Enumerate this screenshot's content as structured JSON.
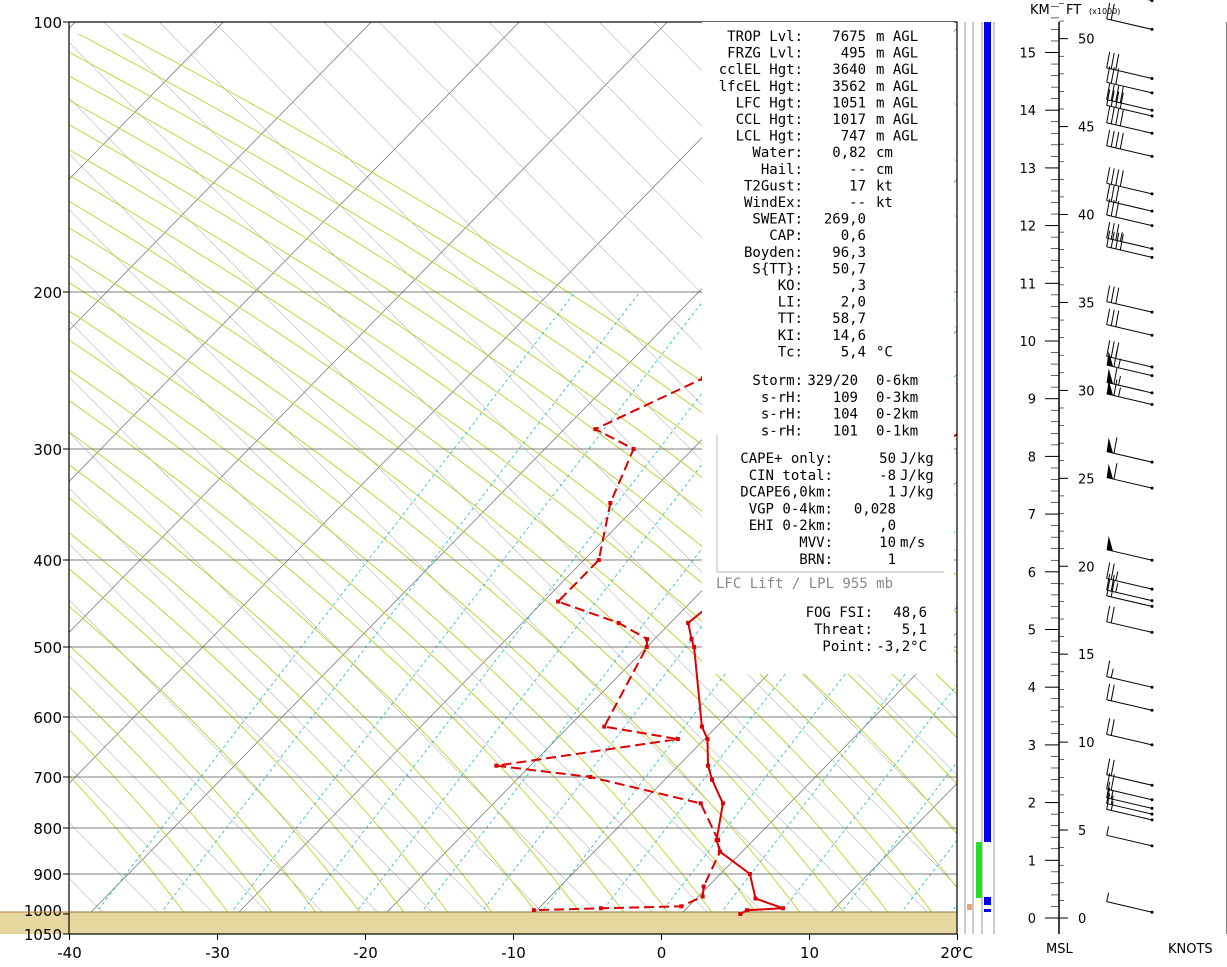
{
  "chart_data": {
    "type": "line",
    "x_units_label": "°C",
    "pressure_ticks": [
      100,
      200,
      300,
      400,
      500,
      600,
      700,
      800,
      900,
      1000,
      1050
    ],
    "temp_ticks": [
      -40,
      -30,
      -20,
      -10,
      0,
      10,
      20
    ],
    "series": [
      {
        "name": "",
        "color": "#dd0000",
        "style": "solid",
        "points": [
          [
            9.2,
            100
          ],
          [
            0.2,
            150
          ],
          [
            -5.8,
            200
          ],
          [
            -10.3,
            250
          ],
          [
            -12.8,
            285
          ],
          [
            -14,
            300
          ],
          [
            -16.8,
            345
          ],
          [
            -17.5,
            400
          ],
          [
            -18.5,
            450
          ],
          [
            -18.8,
            470
          ],
          [
            -17.5,
            490
          ],
          [
            -16.8,
            500
          ],
          [
            -11,
            615
          ],
          [
            -9.8,
            635
          ],
          [
            -8,
            680
          ],
          [
            -6.8,
            705
          ],
          [
            -4.5,
            750
          ],
          [
            -2.5,
            825
          ],
          [
            -1.5,
            850
          ],
          [
            2,
            900
          ],
          [
            4,
            960
          ],
          [
            6.5,
            985
          ],
          [
            4.2,
            990
          ],
          [
            4,
            1000
          ]
        ]
      },
      {
        "name": "",
        "color": "#dd0000",
        "style": "dashed",
        "points": [
          [
            -22.2,
            100
          ],
          [
            -25,
            110
          ],
          [
            -27.8,
            150
          ],
          [
            -31.5,
            200
          ],
          [
            -34,
            250
          ],
          [
            -37.9,
            285
          ],
          [
            -34,
            300
          ],
          [
            -32,
            345
          ],
          [
            -29,
            400
          ],
          [
            -29,
            445
          ],
          [
            -23.5,
            470
          ],
          [
            -20.5,
            490
          ],
          [
            -20,
            500
          ],
          [
            -17.6,
            615
          ],
          [
            -11.8,
            635
          ],
          [
            -22.3,
            680
          ],
          [
            -15.2,
            700
          ],
          [
            -6,
            750
          ],
          [
            -2.4,
            825
          ],
          [
            -1.5,
            850
          ],
          [
            -0.3,
            930
          ],
          [
            0.3,
            955
          ],
          [
            -0.5,
            980
          ],
          [
            -5.8,
            985
          ],
          [
            -10.2,
            990
          ]
        ]
      }
    ],
    "indices": [
      {
        "label": "TROP Lvl:",
        "value": "7675",
        "unit": "m AGL"
      },
      {
        "label": "FRZG Lvl:",
        "value": "495",
        "unit": "m AGL"
      },
      {
        "label": "cclEL Hgt:",
        "value": "3640",
        "unit": "m AGL"
      },
      {
        "label": "lfcEL Hgt:",
        "value": "3562",
        "unit": "m AGL"
      },
      {
        "label": "LFC Hgt:",
        "value": "1051",
        "unit": "m AGL"
      },
      {
        "label": "CCL Hgt:",
        "value": "1017",
        "unit": "m AGL"
      },
      {
        "label": "LCL Hgt:",
        "value": "747",
        "unit": "m AGL"
      },
      {
        "label": "Water:",
        "value": "0,82",
        "unit": "cm"
      },
      {
        "label": "Hail:",
        "value": "--",
        "unit": "cm"
      },
      {
        "label": "T2Gust:",
        "value": "17",
        "unit": "kt"
      },
      {
        "label": "WindEx:",
        "value": "--",
        "unit": "kt"
      },
      {
        "label": "SWEAT:",
        "value": "269,0",
        "unit": ""
      },
      {
        "label": "CAP:",
        "value": "0,6",
        "unit": ""
      },
      {
        "label": "Boyden:",
        "value": "96,3",
        "unit": ""
      },
      {
        "label": "S{TT}:",
        "value": "50,7",
        "unit": ""
      },
      {
        "label": "KO:",
        "value": ",3",
        "unit": ""
      },
      {
        "label": "LI:",
        "value": "2,0",
        "unit": ""
      },
      {
        "label": "TT:",
        "value": "58,7",
        "unit": ""
      },
      {
        "label": "KI:",
        "value": "14,6",
        "unit": ""
      },
      {
        "label": "Tc:",
        "value": "5,4",
        "unit": "°C"
      }
    ],
    "storm": [
      {
        "label": "Storm:",
        "value": "329/20",
        "unit": "0-6km"
      },
      {
        "label": "s-rH:",
        "value": "109",
        "unit": "0-3km"
      },
      {
        "label": "s-rH:",
        "value": "104",
        "unit": "0-2km"
      },
      {
        "label": "s-rH:",
        "value": "101",
        "unit": "0-1km"
      }
    ],
    "cape": [
      {
        "label": "CAPE+ only:",
        "value": "50",
        "unit": "J/kg"
      },
      {
        "label": "CIN total:",
        "value": "-8",
        "unit": "J/kg"
      },
      {
        "label": "DCAPE6,0km:",
        "value": "1",
        "unit": "J/kg"
      },
      {
        "label": "VGP 0-4km:",
        "value": "0,028",
        "unit": ""
      },
      {
        "label": "EHI 0-2km:",
        "value": ",0",
        "unit": ""
      },
      {
        "label": "MVV:",
        "value": "10",
        "unit": "m/s"
      },
      {
        "label": "BRN:",
        "value": "1",
        "unit": ""
      }
    ],
    "lift_label": "LFC Lift / LPL 955 mb",
    "fog": [
      {
        "label": "FOG FSI:",
        "value": "48,6",
        "unit": ""
      },
      {
        "label": "Threat:",
        "value": "5,1",
        "unit": ""
      },
      {
        "label": "Point:",
        "value": "-3,2°C",
        "unit": ""
      }
    ],
    "height_axis": {
      "km_header": "KM",
      "ft_header": "FT",
      "ft_multiplier": "(x1000)",
      "km_ticks": [
        0,
        1,
        2,
        3,
        4,
        5,
        6,
        7,
        8,
        9,
        10,
        11,
        12,
        13,
        14,
        15
      ],
      "ft_ticks": [
        0,
        5,
        10,
        15,
        20,
        25,
        30,
        35,
        40,
        45,
        50
      ],
      "msl_label": "MSL",
      "knots_label": "KNOTS"
    },
    "wind_barbs": [
      {
        "km": 0.1,
        "kt": 5
      },
      {
        "km": 1.25,
        "kt": 5
      },
      {
        "km": 1.7,
        "kt": 15
      },
      {
        "km": 1.8,
        "kt": 15
      },
      {
        "km": 1.9,
        "kt": 15
      },
      {
        "km": 2.05,
        "kt": 20
      },
      {
        "km": 2.3,
        "kt": 20
      },
      {
        "km": 3.0,
        "kt": 20
      },
      {
        "km": 3.6,
        "kt": 20
      },
      {
        "km": 4.0,
        "kt": 15
      },
      {
        "km": 4.95,
        "kt": 20
      },
      {
        "km": 5.4,
        "kt": 20
      },
      {
        "km": 5.5,
        "kt": 25
      },
      {
        "km": 5.7,
        "kt": 25
      },
      {
        "km": 6.2,
        "kt": 50
      },
      {
        "km": 7.45,
        "kt": 60
      },
      {
        "km": 7.9,
        "kt": 60
      },
      {
        "km": 8.9,
        "kt": 65
      },
      {
        "km": 9.1,
        "kt": 65
      },
      {
        "km": 9.4,
        "kt": 65
      },
      {
        "km": 9.55,
        "kt": 30
      },
      {
        "km": 10.1,
        "kt": 30
      },
      {
        "km": 10.5,
        "kt": 30
      },
      {
        "km": 11.45,
        "kt": 40
      },
      {
        "km": 11.6,
        "kt": 35
      },
      {
        "km": 12.0,
        "kt": 30
      },
      {
        "km": 12.25,
        "kt": 30
      },
      {
        "km": 12.55,
        "kt": 40
      },
      {
        "km": 13.2,
        "kt": 40
      },
      {
        "km": 13.6,
        "kt": 40
      },
      {
        "km": 13.9,
        "kt": 40
      },
      {
        "km": 14.0,
        "kt": 40
      },
      {
        "km": 14.3,
        "kt": 30
      },
      {
        "km": 14.55,
        "kt": 30
      },
      {
        "km": 15.4,
        "kt": 20
      },
      {
        "km": 15.9,
        "kt": 25
      }
    ]
  }
}
